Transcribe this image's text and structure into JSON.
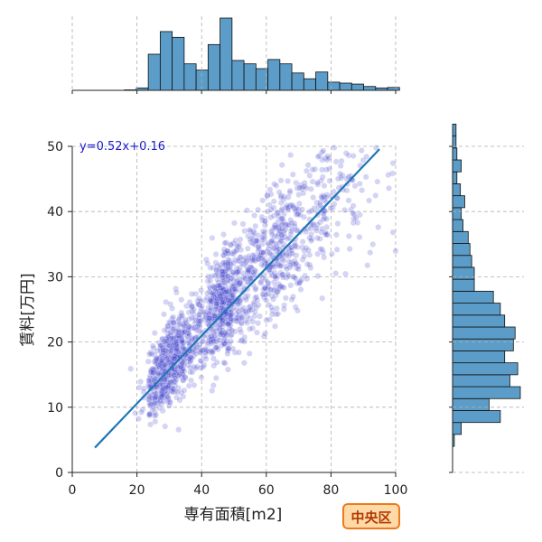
{
  "chart_data": {
    "type": "scatter",
    "title": "",
    "xlabel": "専有面積[m2]",
    "ylabel": "賃料[万円]",
    "xlim": [
      0,
      100
    ],
    "ylim": [
      0,
      50
    ],
    "x_ticks": [
      "0",
      "20",
      "40",
      "60",
      "80",
      "100"
    ],
    "y_ticks": [
      "0",
      "10",
      "20",
      "30",
      "40",
      "50"
    ],
    "grid": true,
    "regression": {
      "label": "y=0.52x+0.16",
      "slope": 0.52,
      "intercept": 0.16,
      "x_range": [
        7,
        95
      ]
    },
    "badge": "中央区",
    "colors": {
      "points": "#3a3acc",
      "line": "#1f77b4",
      "hist": "#5b9dc8",
      "equation": "#1a1acc",
      "badge_fill": "#ffd9a8",
      "badge_border": "#f07a1a",
      "badge_text": "#b03a00"
    },
    "scatter_trend": [
      [
        7,
        5
      ],
      [
        15,
        9
      ],
      [
        20,
        11
      ],
      [
        25,
        14
      ],
      [
        30,
        17
      ],
      [
        35,
        19
      ],
      [
        40,
        22
      ],
      [
        45,
        25
      ],
      [
        50,
        27
      ],
      [
        55,
        30
      ],
      [
        60,
        32
      ],
      [
        65,
        35
      ],
      [
        70,
        37
      ],
      [
        75,
        40
      ],
      [
        80,
        42
      ],
      [
        85,
        45
      ],
      [
        90,
        47
      ],
      [
        95,
        49
      ]
    ],
    "top_hist": {
      "bin_start": 5,
      "bin_width": 3.7,
      "counts": [
        0,
        0,
        0,
        1,
        5,
        75,
        122,
        110,
        55,
        42,
        95,
        150,
        62,
        55,
        45,
        64,
        55,
        36,
        24,
        38,
        17,
        15,
        13,
        8,
        5,
        6
      ]
    },
    "right_hist": {
      "bin_start": 4,
      "bin_width": 1.83,
      "counts": [
        2,
        10,
        55,
        42,
        78,
        66,
        75,
        60,
        70,
        72,
        60,
        55,
        47,
        25,
        25,
        22,
        20,
        18,
        12,
        10,
        14,
        9,
        5,
        10,
        5,
        4,
        4
      ]
    }
  }
}
